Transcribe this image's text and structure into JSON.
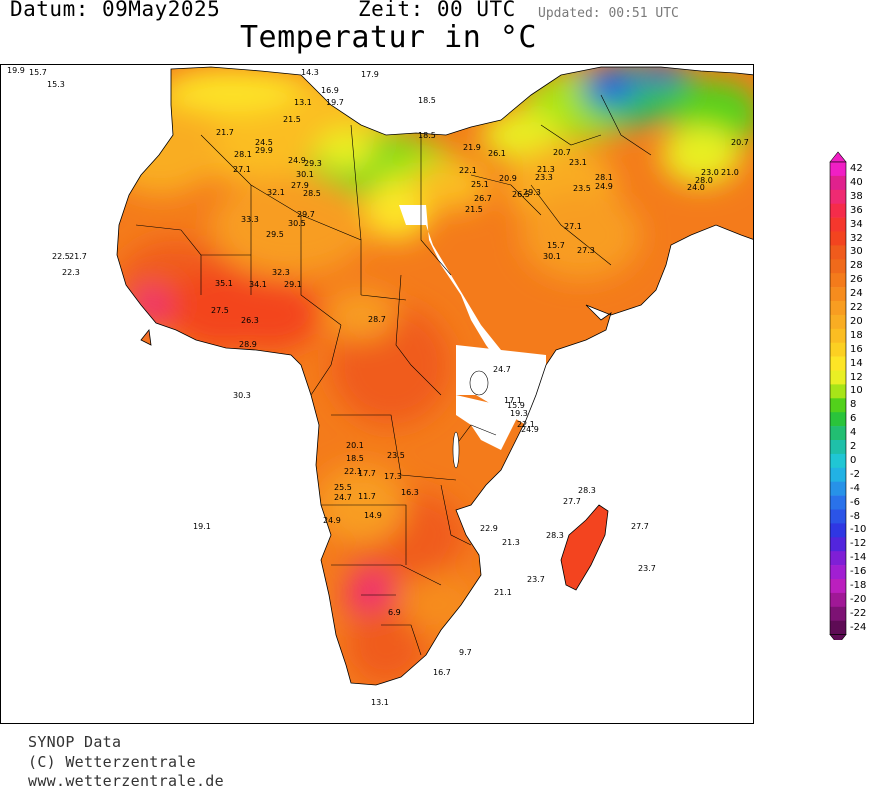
{
  "header": {
    "date_label": "Datum:",
    "date_value": "09May2025",
    "time_label": "Zeit:",
    "time_value": "00",
    "time_zone": "UTC",
    "updated": "Updated: 00:51 UTC",
    "title": "Temperatur in °C"
  },
  "legend": {
    "levels": [
      "42",
      "40",
      "38",
      "36",
      "34",
      "32",
      "30",
      "28",
      "26",
      "24",
      "22",
      "20",
      "18",
      "16",
      "14",
      "12",
      "10",
      "8",
      "6",
      "4",
      "2",
      "0",
      "-2",
      "-4",
      "-6",
      "-8",
      "-10",
      "-12",
      "-14",
      "-16",
      "-18",
      "-20",
      "-22",
      "-24"
    ],
    "colors": [
      "#f01fc4",
      "#e0218d",
      "#ef2a72",
      "#f52c4a",
      "#f5372d",
      "#f3441f",
      "#f05b1c",
      "#f06a1b",
      "#f47b1b",
      "#f68c1e",
      "#f89d21",
      "#f9ad23",
      "#fbbd22",
      "#fcd022",
      "#fde526",
      "#e9ef24",
      "#a7e418",
      "#52d11b",
      "#2ac43b",
      "#22be72",
      "#1fc0a9",
      "#20c6d4",
      "#22b2e4",
      "#2792e8",
      "#2a72ea",
      "#2b54e7",
      "#2f37e3",
      "#5225dd",
      "#7f1fd6",
      "#a11fd2",
      "#bb1fbe",
      "#a01896",
      "#7d1274",
      "#5e0b55"
    ]
  },
  "stations": [
    {
      "t": "19.9"
    },
    {
      "t": "15.7"
    },
    {
      "t": "15.3"
    },
    {
      "t": "14.3"
    },
    {
      "t": "17.9"
    },
    {
      "t": "19.7"
    },
    {
      "t": "16.9"
    },
    {
      "t": "18.5"
    },
    {
      "t": "13.1"
    },
    {
      "t": "21.5"
    },
    {
      "t": "21.7"
    },
    {
      "t": "24.5"
    },
    {
      "t": "28.1"
    },
    {
      "t": "27.1"
    },
    {
      "t": "29.9"
    },
    {
      "t": "24.9"
    },
    {
      "t": "29.3"
    },
    {
      "t": "30.1"
    },
    {
      "t": "27.9"
    },
    {
      "t": "32.1"
    },
    {
      "t": "28.5"
    },
    {
      "t": "29.7"
    },
    {
      "t": "30.5"
    },
    {
      "t": "33.3"
    },
    {
      "t": "29.5"
    },
    {
      "t": "22.5"
    },
    {
      "t": "21.7"
    },
    {
      "t": "22.3"
    },
    {
      "t": "35.1"
    },
    {
      "t": "34.1"
    },
    {
      "t": "32.3"
    },
    {
      "t": "29.1"
    },
    {
      "t": "27.5"
    },
    {
      "t": "26.3"
    },
    {
      "t": "28.9"
    },
    {
      "t": "28.7"
    },
    {
      "t": "30.3"
    },
    {
      "t": "18.5"
    },
    {
      "t": "21.9"
    },
    {
      "t": "26.1"
    },
    {
      "t": "22.1"
    },
    {
      "t": "25.1"
    },
    {
      "t": "20.9"
    },
    {
      "t": "26.7"
    },
    {
      "t": "21.5"
    },
    {
      "t": "26.5"
    },
    {
      "t": "29.3"
    },
    {
      "t": "21.3"
    },
    {
      "t": "23.3"
    },
    {
      "t": "20.7"
    },
    {
      "t": "23.1"
    },
    {
      "t": "28.1"
    },
    {
      "t": "24.9"
    },
    {
      "t": "23.5"
    },
    {
      "t": "27.1"
    },
    {
      "t": "27.3"
    },
    {
      "t": "15.7"
    },
    {
      "t": "30.1"
    },
    {
      "t": "24.7"
    },
    {
      "t": "17.1"
    },
    {
      "t": "15.9"
    },
    {
      "t": "19.3"
    },
    {
      "t": "22.1"
    },
    {
      "t": "24.9"
    },
    {
      "t": "20.1"
    },
    {
      "t": "18.5"
    },
    {
      "t": "22.1"
    },
    {
      "t": "17.7"
    },
    {
      "t": "23.5"
    },
    {
      "t": "17.3"
    },
    {
      "t": "25.5"
    },
    {
      "t": "24.7"
    },
    {
      "t": "11.7"
    },
    {
      "t": "16.3"
    },
    {
      "t": "14.9"
    },
    {
      "t": "24.9"
    },
    {
      "t": "19.1"
    },
    {
      "t": "22.9"
    },
    {
      "t": "21.3"
    },
    {
      "t": "28.3"
    },
    {
      "t": "27.7"
    },
    {
      "t": "28.3"
    },
    {
      "t": "27.7"
    },
    {
      "t": "23.7"
    },
    {
      "t": "23.7"
    },
    {
      "t": "21.1"
    },
    {
      "t": "6.9"
    },
    {
      "t": "13.1"
    },
    {
      "t": "16.7"
    },
    {
      "t": "9.7"
    },
    {
      "t": "23.0"
    },
    {
      "t": "28.0"
    },
    {
      "t": "24.0"
    },
    {
      "t": "21.0"
    },
    {
      "t": "20.7"
    }
  ],
  "footer": {
    "line1": "SYNOP Data",
    "line2": "(C) Wetterzentrale",
    "line3": "www.wetterzentrale.de"
  }
}
